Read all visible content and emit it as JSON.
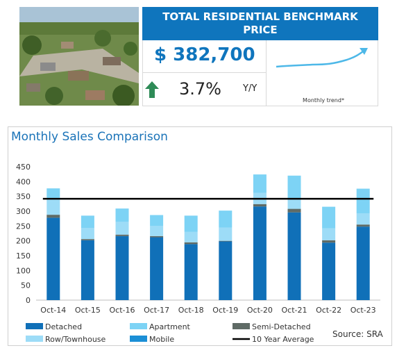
{
  "benchmark": {
    "title": "TOTAL RESIDENTIAL BENCHMARK PRICE",
    "price": "$ 382,700",
    "change": "3.7%",
    "change_unit": "Y/Y",
    "trend_label": "Monthly trend*",
    "header_color": "#0f75bd",
    "arrow_color": "#2e8b57",
    "trend_color": "#4db8e8"
  },
  "chart_data": {
    "type": "bar",
    "title": "Monthly Sales Comparison",
    "categories": [
      "Oct-14",
      "Oct-15",
      "Oct-16",
      "Oct-17",
      "Oct-18",
      "Oct-19",
      "Oct-20",
      "Oct-21",
      "Oct-22",
      "Oct-23"
    ],
    "stacked": true,
    "ylim": [
      0,
      450
    ],
    "yticks": [
      0,
      50,
      100,
      150,
      200,
      250,
      300,
      350,
      400,
      450
    ],
    "series": [
      {
        "name": "Detached",
        "color": "#1070b8",
        "values": [
          278,
          202,
          216,
          212,
          189,
          198,
          316,
          296,
          194,
          248
        ]
      },
      {
        "name": "Mobile",
        "color": "#1b8fd6",
        "values": [
          0,
          0,
          0,
          0,
          0,
          0,
          0,
          0,
          0,
          0
        ]
      },
      {
        "name": "Semi-Detached",
        "color": "#5f6b66",
        "values": [
          10,
          4,
          5,
          4,
          6,
          2,
          8,
          12,
          8,
          7
        ]
      },
      {
        "name": "Row/Townhouse",
        "color": "#9ddcf7",
        "values": [
          50,
          37,
          43,
          34,
          35,
          45,
          38,
          30,
          40,
          38
        ]
      },
      {
        "name": "Apartment",
        "color": "#7dd3f5",
        "values": [
          39,
          42,
          45,
          37,
          55,
          57,
          62,
          82,
          73,
          83
        ]
      }
    ],
    "reference_line": {
      "name": "10 Year Average",
      "value": 342,
      "color": "#000000"
    },
    "legend": [
      {
        "label": "Detached",
        "color": "#1070b8",
        "kind": "box"
      },
      {
        "label": "Apartment",
        "color": "#7dd3f5",
        "kind": "box"
      },
      {
        "label": "Semi-Detached",
        "color": "#5f6b66",
        "kind": "box"
      },
      {
        "label": "Row/Townhouse",
        "color": "#9ddcf7",
        "kind": "box"
      },
      {
        "label": "Mobile",
        "color": "#1b8fd6",
        "kind": "box"
      },
      {
        "label": "10 Year Average",
        "color": "#000000",
        "kind": "line"
      }
    ],
    "legend_position": "bottom",
    "grid": false
  },
  "source": "Source: SRA"
}
